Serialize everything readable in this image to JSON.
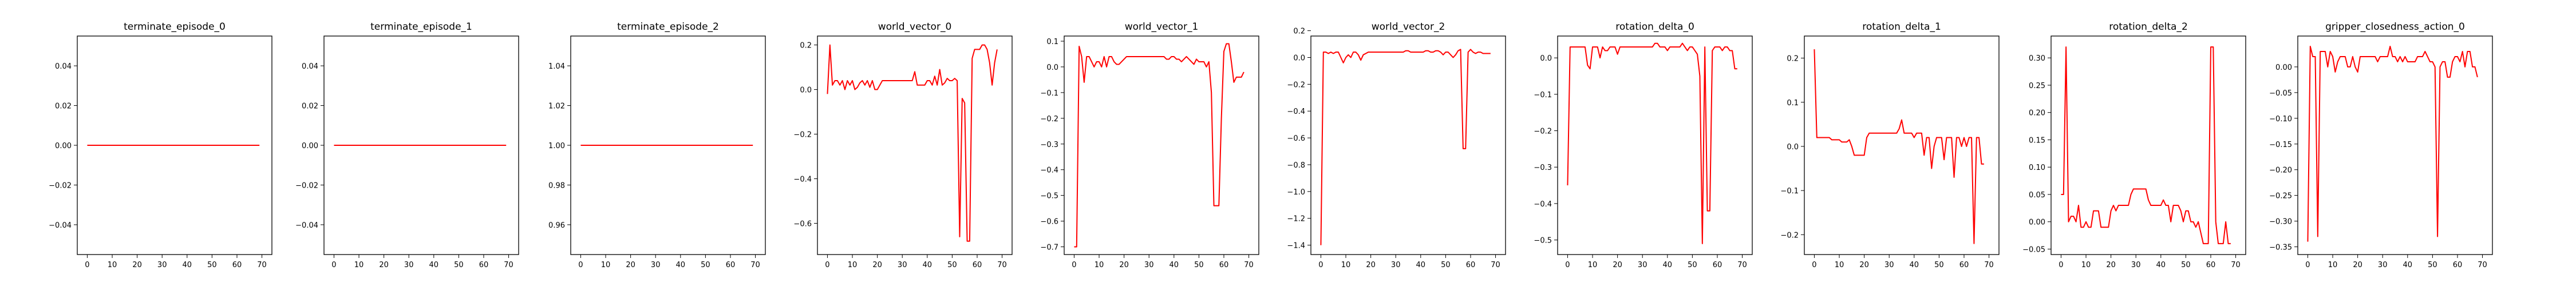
{
  "figure": {
    "line_color": "#ff0000",
    "axis_color": "#000000",
    "background": "#ffffff"
  },
  "chart_data": [
    {
      "type": "line",
      "title": "terminate_episode_0",
      "xlim": [
        -4,
        74
      ],
      "ylim": [
        -0.055,
        0.055
      ],
      "xticks": [
        0,
        10,
        20,
        30,
        40,
        50,
        60,
        70
      ],
      "yticks": [
        -0.04,
        -0.02,
        0.0,
        0.02,
        0.04
      ],
      "ytick_labels": [
        "−0.04",
        "−0.02",
        "0.00",
        "0.02",
        "0.04"
      ],
      "series": [
        {
          "x": [
            0,
            69
          ],
          "values": [
            0,
            0
          ]
        }
      ]
    },
    {
      "type": "line",
      "title": "terminate_episode_1",
      "xlim": [
        -4,
        74
      ],
      "ylim": [
        -0.055,
        0.055
      ],
      "xticks": [
        0,
        10,
        20,
        30,
        40,
        50,
        60,
        70
      ],
      "yticks": [
        -0.04,
        -0.02,
        0.0,
        0.02,
        0.04
      ],
      "ytick_labels": [
        "−0.04",
        "−0.02",
        "0.00",
        "0.02",
        "0.04"
      ],
      "series": [
        {
          "x": [
            0,
            69
          ],
          "values": [
            0,
            0
          ]
        }
      ]
    },
    {
      "type": "line",
      "title": "terminate_episode_2",
      "xlim": [
        -4,
        74
      ],
      "ylim": [
        0.945,
        1.055
      ],
      "xticks": [
        0,
        10,
        20,
        30,
        40,
        50,
        60,
        70
      ],
      "yticks": [
        0.96,
        0.98,
        1.0,
        1.02,
        1.04
      ],
      "ytick_labels": [
        "0.96",
        "0.98",
        "1.00",
        "1.02",
        "1.04"
      ],
      "series": [
        {
          "x": [
            0,
            69
          ],
          "values": [
            1,
            1
          ]
        }
      ]
    },
    {
      "type": "line",
      "title": "world_vector_0",
      "xlim": [
        -4,
        74
      ],
      "ylim": [
        -0.74,
        0.24
      ],
      "xticks": [
        0,
        10,
        20,
        30,
        40,
        50,
        60,
        70
      ],
      "yticks": [
        -0.6,
        -0.4,
        -0.2,
        0.0,
        0.2
      ],
      "ytick_labels": [
        "−0.6",
        "−0.4",
        "−0.2",
        "0.0",
        "0.2"
      ],
      "series": [
        {
          "x_start": 0,
          "values": [
            -0.02,
            0.2,
            0.02,
            0.04,
            0.04,
            0.02,
            0.04,
            0.0,
            0.04,
            0.02,
            0.04,
            0.0,
            0.01,
            0.03,
            0.04,
            0.02,
            0.04,
            0.01,
            0.04,
            0.0,
            0.0,
            0.02,
            0.04,
            0.04,
            0.04,
            0.04,
            0.04,
            0.04,
            0.04,
            0.04,
            0.04,
            0.04,
            0.04,
            0.04,
            0.04,
            0.08,
            0.02,
            0.02,
            0.02,
            0.02,
            0.04,
            0.04,
            0.02,
            0.06,
            0.02,
            0.09,
            0.02,
            0.03,
            0.05,
            0.04,
            0.04,
            0.05,
            0.04,
            -0.66,
            -0.04,
            -0.06,
            -0.68,
            -0.68,
            0.14,
            0.18,
            0.18,
            0.18,
            0.2,
            0.2,
            0.18,
            0.12,
            0.02,
            0.12,
            0.18
          ]
        }
      ]
    },
    {
      "type": "line",
      "title": "world_vector_1",
      "xlim": [
        -4,
        74
      ],
      "ylim": [
        -0.73,
        0.12
      ],
      "xticks": [
        0,
        10,
        20,
        30,
        40,
        50,
        60,
        70
      ],
      "yticks": [
        -0.7,
        -0.6,
        -0.5,
        -0.4,
        -0.3,
        -0.2,
        -0.1,
        0.0,
        0.1
      ],
      "ytick_labels": [
        "−0.7",
        "−0.6",
        "−0.5",
        "−0.4",
        "−0.3",
        "−0.2",
        "−0.1",
        "0.0",
        "0.1"
      ],
      "series": [
        {
          "x_start": 0,
          "values": [
            -0.7,
            -0.7,
            0.08,
            0.04,
            -0.06,
            0.04,
            0.04,
            0.02,
            0.0,
            0.02,
            0.02,
            0.0,
            0.04,
            0.0,
            0.04,
            0.04,
            0.02,
            0.01,
            0.01,
            0.02,
            0.03,
            0.04,
            0.04,
            0.04,
            0.04,
            0.04,
            0.04,
            0.04,
            0.04,
            0.04,
            0.04,
            0.04,
            0.04,
            0.04,
            0.04,
            0.04,
            0.04,
            0.03,
            0.03,
            0.04,
            0.04,
            0.03,
            0.03,
            0.02,
            0.03,
            0.04,
            0.03,
            0.02,
            0.01,
            0.03,
            0.02,
            0.02,
            0.02,
            0.0,
            0.02,
            -0.1,
            -0.54,
            -0.54,
            -0.54,
            -0.2,
            0.06,
            0.09,
            0.09,
            0.02,
            -0.06,
            -0.04,
            -0.04,
            -0.04,
            -0.02
          ]
        }
      ]
    },
    {
      "type": "line",
      "title": "world_vector_2",
      "xlim": [
        -4,
        74
      ],
      "ylim": [
        -1.47,
        0.16
      ],
      "xticks": [
        0,
        10,
        20,
        30,
        40,
        50,
        60,
        70
      ],
      "yticks": [
        -1.4,
        -1.2,
        -1.0,
        -0.8,
        -0.6,
        -0.4,
        -0.2,
        0.0,
        0.2
      ],
      "ytick_labels": [
        "−1.4",
        "−1.2",
        "−1.0",
        "−0.8",
        "−0.6",
        "−0.4",
        "−0.2",
        "0.0",
        "0.2"
      ],
      "series": [
        {
          "x_start": 0,
          "values": [
            -1.4,
            0.04,
            0.04,
            0.03,
            0.04,
            0.03,
            0.04,
            0.04,
            0.0,
            -0.04,
            0.0,
            0.02,
            0.0,
            0.04,
            0.04,
            0.02,
            -0.02,
            0.02,
            0.03,
            0.04,
            0.04,
            0.04,
            0.04,
            0.04,
            0.04,
            0.04,
            0.04,
            0.04,
            0.04,
            0.04,
            0.04,
            0.04,
            0.04,
            0.04,
            0.05,
            0.05,
            0.04,
            0.04,
            0.04,
            0.04,
            0.04,
            0.04,
            0.05,
            0.05,
            0.04,
            0.04,
            0.05,
            0.05,
            0.04,
            0.02,
            0.04,
            0.04,
            0.02,
            0.0,
            0.02,
            0.05,
            0.06,
            -0.68,
            -0.68,
            0.04,
            0.06,
            0.04,
            0.03,
            0.04,
            0.04,
            0.03,
            0.03,
            0.03,
            0.03
          ]
        }
      ]
    },
    {
      "type": "line",
      "title": "rotation_delta_0",
      "xlim": [
        -4,
        74
      ],
      "ylim": [
        -0.54,
        0.06
      ],
      "xticks": [
        0,
        10,
        20,
        30,
        40,
        50,
        60,
        70
      ],
      "yticks": [
        -0.5,
        -0.4,
        -0.3,
        -0.2,
        -0.1,
        0.0
      ],
      "ytick_labels": [
        "−0.5",
        "−0.4",
        "−0.3",
        "−0.2",
        "−0.1",
        "0.0"
      ],
      "series": [
        {
          "x_start": 0,
          "values": [
            -0.35,
            0.03,
            0.03,
            0.03,
            0.03,
            0.03,
            0.03,
            0.03,
            -0.02,
            -0.03,
            0.03,
            0.03,
            0.03,
            0.0,
            0.03,
            0.02,
            0.02,
            0.03,
            0.03,
            0.03,
            0.01,
            0.03,
            0.03,
            0.03,
            0.03,
            0.03,
            0.03,
            0.03,
            0.03,
            0.03,
            0.03,
            0.03,
            0.03,
            0.03,
            0.03,
            0.04,
            0.04,
            0.03,
            0.03,
            0.03,
            0.02,
            0.03,
            0.03,
            0.03,
            0.03,
            0.03,
            0.04,
            0.03,
            0.02,
            0.03,
            0.03,
            0.02,
            0.01,
            -0.05,
            -0.51,
            0.03,
            -0.42,
            -0.42,
            0.02,
            0.03,
            0.03,
            0.03,
            0.02,
            0.03,
            0.03,
            0.02,
            0.02,
            -0.03,
            -0.03
          ]
        }
      ]
    },
    {
      "type": "line",
      "title": "rotation_delta_1",
      "xlim": [
        -4,
        74
      ],
      "ylim": [
        -0.245,
        0.25
      ],
      "xticks": [
        0,
        10,
        20,
        30,
        40,
        50,
        60,
        70
      ],
      "yticks": [
        -0.2,
        -0.1,
        0.0,
        0.1,
        0.2
      ],
      "ytick_labels": [
        "−0.2",
        "−0.1",
        "0.0",
        "0.1",
        "0.2"
      ],
      "series": [
        {
          "x_start": 0,
          "values": [
            0.22,
            0.02,
            0.02,
            0.02,
            0.02,
            0.02,
            0.02,
            0.015,
            0.015,
            0.015,
            0.015,
            0.01,
            0.01,
            0.01,
            0.015,
            0.0,
            -0.02,
            -0.02,
            -0.02,
            -0.02,
            -0.02,
            0.02,
            0.03,
            0.03,
            0.03,
            0.03,
            0.03,
            0.03,
            0.03,
            0.03,
            0.03,
            0.03,
            0.03,
            0.03,
            0.04,
            0.06,
            0.03,
            0.03,
            0.03,
            0.03,
            0.02,
            0.03,
            0.03,
            0.03,
            -0.02,
            0.02,
            0.02,
            -0.05,
            0.0,
            0.02,
            0.02,
            0.02,
            -0.03,
            0.02,
            0.02,
            0.02,
            -0.07,
            0.02,
            0.02,
            0.0,
            0.02,
            0.0,
            0.02,
            0.02,
            -0.22,
            0.02,
            0.02,
            -0.04,
            -0.04
          ]
        }
      ]
    },
    {
      "type": "line",
      "title": "rotation_delta_2",
      "xlim": [
        -4,
        74
      ],
      "ylim": [
        -0.06,
        0.34
      ],
      "xticks": [
        0,
        10,
        20,
        30,
        40,
        50,
        60,
        70
      ],
      "yticks": [
        -0.05,
        0.0,
        0.05,
        0.1,
        0.15,
        0.2,
        0.25,
        0.3
      ],
      "ytick_labels": [
        "−0.05",
        "0.00",
        "0.05",
        "0.10",
        "0.15",
        "0.20",
        "0.25",
        "0.30"
      ],
      "series": [
        {
          "x_start": 0,
          "values": [
            0.05,
            0.05,
            0.32,
            0.0,
            0.01,
            0.01,
            0.0,
            0.03,
            -0.01,
            -0.01,
            0.0,
            -0.01,
            -0.01,
            0.02,
            0.02,
            0.02,
            -0.01,
            -0.01,
            -0.01,
            -0.01,
            0.02,
            0.03,
            0.02,
            0.03,
            0.03,
            0.03,
            0.03,
            0.03,
            0.05,
            0.06,
            0.06,
            0.06,
            0.06,
            0.06,
            0.06,
            0.04,
            0.03,
            0.03,
            0.03,
            0.03,
            0.03,
            0.04,
            0.03,
            0.03,
            0.0,
            0.03,
            0.03,
            0.03,
            0.02,
            0.0,
            0.02,
            0.02,
            0.0,
            0.0,
            -0.01,
            0.0,
            -0.02,
            -0.04,
            -0.04,
            -0.04,
            0.32,
            0.32,
            0.0,
            -0.04,
            -0.04,
            -0.04,
            0.0,
            -0.04,
            -0.04
          ]
        }
      ]
    },
    {
      "type": "line",
      "title": "gripper_closedness_action_0",
      "xlim": [
        -4,
        74
      ],
      "ylim": [
        -0.365,
        0.06
      ],
      "xticks": [
        0,
        10,
        20,
        30,
        40,
        50,
        60,
        70
      ],
      "yticks": [
        -0.35,
        -0.3,
        -0.25,
        -0.2,
        -0.15,
        -0.1,
        -0.05,
        0.0
      ],
      "ytick_labels": [
        "−0.35",
        "−0.30",
        "−0.25",
        "−0.20",
        "−0.15",
        "−0.10",
        "−0.05",
        "0.00"
      ],
      "series": [
        {
          "x_start": 0,
          "values": [
            -0.34,
            0.04,
            0.02,
            0.02,
            -0.33,
            0.03,
            0.03,
            0.03,
            0.0,
            0.03,
            0.02,
            -0.01,
            0.01,
            0.02,
            0.02,
            0.02,
            0.0,
            0.0,
            0.02,
            0.0,
            -0.01,
            0.02,
            0.02,
            0.02,
            0.02,
            0.02,
            0.02,
            0.02,
            0.01,
            0.02,
            0.02,
            0.02,
            0.02,
            0.04,
            0.02,
            0.02,
            0.01,
            0.02,
            0.01,
            0.02,
            0.01,
            0.01,
            0.01,
            0.01,
            0.02,
            0.02,
            0.02,
            0.03,
            0.02,
            0.01,
            0.01,
            0.0,
            -0.33,
            0.0,
            0.01,
            0.01,
            -0.02,
            -0.02,
            0.01,
            0.02,
            0.02,
            0.01,
            0.03,
            0.0,
            0.03,
            0.03,
            0.0,
            0.0,
            -0.02
          ]
        }
      ]
    }
  ]
}
